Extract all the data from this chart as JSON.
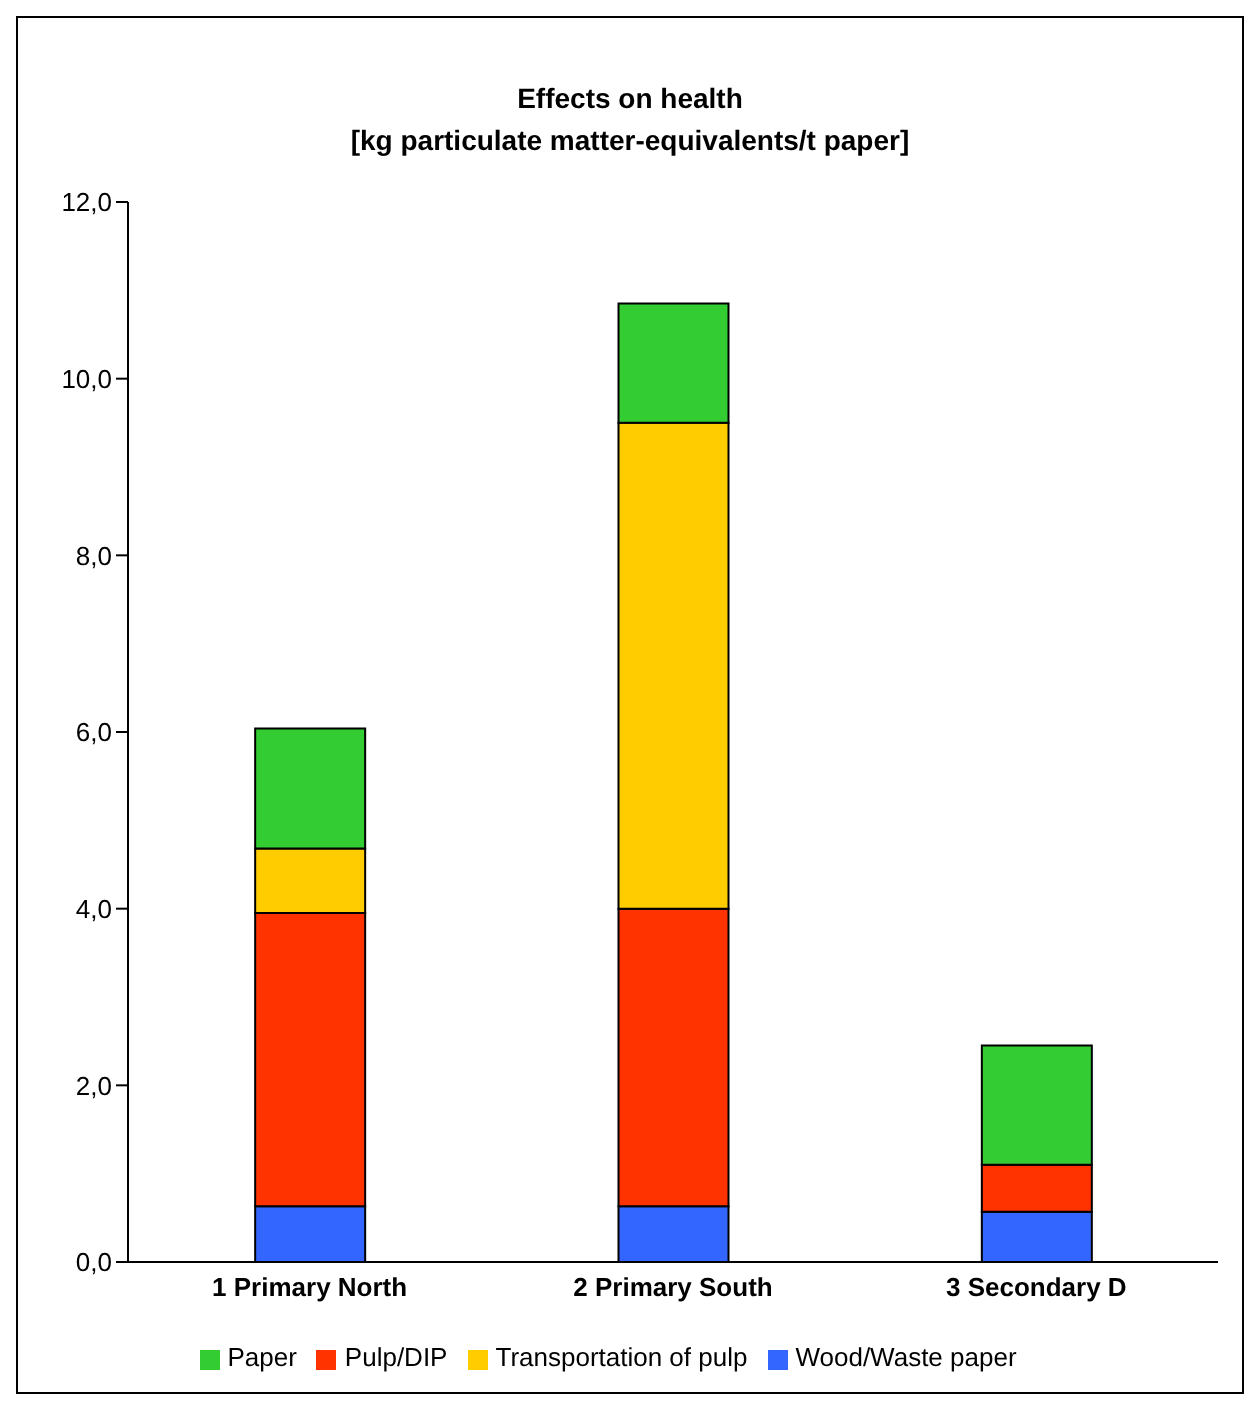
{
  "chart_data": {
    "type": "bar",
    "title": "Effects on health",
    "subtitle": "[kg particulate matter-equivalents/t paper]",
    "categories": [
      "1 Primary North",
      "2 Primary South",
      "3 Secondary D"
    ],
    "stacked": true,
    "series": [
      {
        "name": "Wood/Waste paper",
        "color": "#3366ff",
        "values": [
          0.63,
          0.63,
          0.57
        ]
      },
      {
        "name": "Pulp/DIP",
        "color": "#ff3300",
        "values": [
          3.32,
          3.37,
          0.53
        ]
      },
      {
        "name": "Transportation of pulp",
        "color": "#ffcc00",
        "values": [
          0.73,
          5.5,
          0
        ]
      },
      {
        "name": "Paper",
        "color": "#33cc33",
        "values": [
          1.36,
          1.35,
          1.35
        ]
      }
    ],
    "ylim": [
      0,
      12
    ],
    "yticks": [
      {
        "value": 0,
        "label": "0,0"
      },
      {
        "value": 2,
        "label": "2,0"
      },
      {
        "value": 4,
        "label": "4,0"
      },
      {
        "value": 6,
        "label": "6,0"
      },
      {
        "value": 8,
        "label": "8,0"
      },
      {
        "value": 10,
        "label": "10,0"
      },
      {
        "value": 12,
        "label": "12,0"
      }
    ],
    "grid": false,
    "legend": "bottom"
  }
}
